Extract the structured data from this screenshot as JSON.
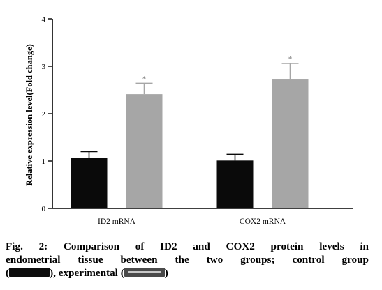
{
  "chart_data": {
    "type": "bar",
    "categories": [
      "ID2 mRNA",
      "COX2 mRNA"
    ],
    "series": [
      {
        "name": "control",
        "color": "#0a0a0a",
        "values": [
          1.06,
          1.01
        ],
        "errors": [
          0.14,
          0.13
        ]
      },
      {
        "name": "experimental",
        "color": "#a6a6a6",
        "values": [
          2.41,
          2.72
        ],
        "errors": [
          0.23,
          0.34
        ]
      }
    ],
    "significance": [
      "*",
      "*"
    ],
    "title": "",
    "xlabel": "",
    "ylabel": "Relative expression level(Fold change)",
    "ylim": [
      0,
      4
    ],
    "yticks": [
      "0",
      "1",
      "2",
      "3",
      "4"
    ],
    "grid": false
  },
  "caption": {
    "line1": "Fig. 2: Comparison of ID2 and COX2 protein levels in",
    "line2": "endometrial tissue between the two groups; control group",
    "line3_open": "(",
    "line3_mid": "), experimental (",
    "line3_close": ")"
  }
}
